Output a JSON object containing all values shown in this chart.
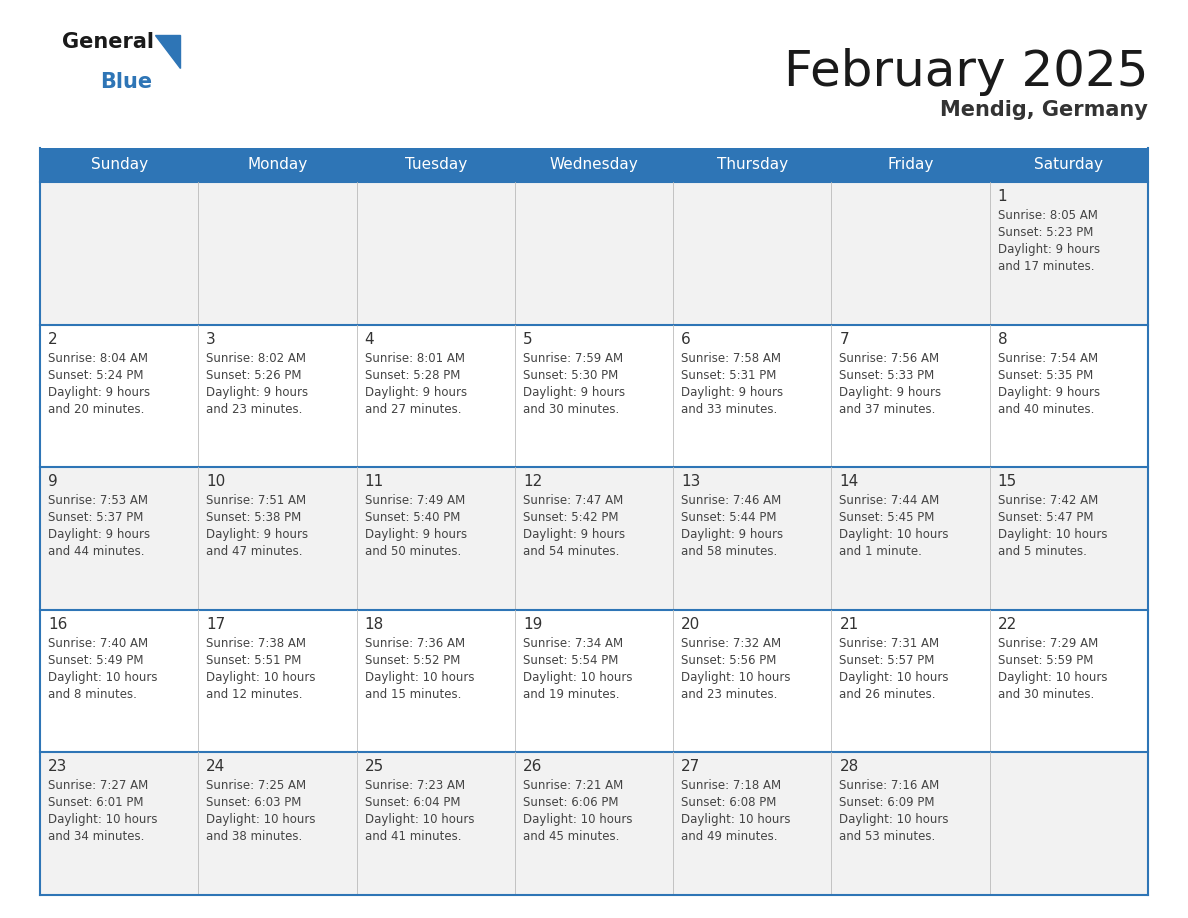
{
  "title": "February 2025",
  "subtitle": "Mendig, Germany",
  "header_bg": "#2E75B6",
  "header_text_color": "#FFFFFF",
  "days_of_week": [
    "Sunday",
    "Monday",
    "Tuesday",
    "Wednesday",
    "Thursday",
    "Friday",
    "Saturday"
  ],
  "cell_bg_odd": "#F2F2F2",
  "cell_bg_even": "#FFFFFF",
  "border_color": "#2E75B6",
  "day_number_color": "#333333",
  "info_text_color": "#444444",
  "calendar": [
    [
      null,
      null,
      null,
      null,
      null,
      null,
      {
        "day": 1,
        "sunrise": "8:05 AM",
        "sunset": "5:23 PM",
        "daylight": "9 hours and 17 minutes."
      }
    ],
    [
      {
        "day": 2,
        "sunrise": "8:04 AM",
        "sunset": "5:24 PM",
        "daylight": "9 hours and 20 minutes."
      },
      {
        "day": 3,
        "sunrise": "8:02 AM",
        "sunset": "5:26 PM",
        "daylight": "9 hours and 23 minutes."
      },
      {
        "day": 4,
        "sunrise": "8:01 AM",
        "sunset": "5:28 PM",
        "daylight": "9 hours and 27 minutes."
      },
      {
        "day": 5,
        "sunrise": "7:59 AM",
        "sunset": "5:30 PM",
        "daylight": "9 hours and 30 minutes."
      },
      {
        "day": 6,
        "sunrise": "7:58 AM",
        "sunset": "5:31 PM",
        "daylight": "9 hours and 33 minutes."
      },
      {
        "day": 7,
        "sunrise": "7:56 AM",
        "sunset": "5:33 PM",
        "daylight": "9 hours and 37 minutes."
      },
      {
        "day": 8,
        "sunrise": "7:54 AM",
        "sunset": "5:35 PM",
        "daylight": "9 hours and 40 minutes."
      }
    ],
    [
      {
        "day": 9,
        "sunrise": "7:53 AM",
        "sunset": "5:37 PM",
        "daylight": "9 hours and 44 minutes."
      },
      {
        "day": 10,
        "sunrise": "7:51 AM",
        "sunset": "5:38 PM",
        "daylight": "9 hours and 47 minutes."
      },
      {
        "day": 11,
        "sunrise": "7:49 AM",
        "sunset": "5:40 PM",
        "daylight": "9 hours and 50 minutes."
      },
      {
        "day": 12,
        "sunrise": "7:47 AM",
        "sunset": "5:42 PM",
        "daylight": "9 hours and 54 minutes."
      },
      {
        "day": 13,
        "sunrise": "7:46 AM",
        "sunset": "5:44 PM",
        "daylight": "9 hours and 58 minutes."
      },
      {
        "day": 14,
        "sunrise": "7:44 AM",
        "sunset": "5:45 PM",
        "daylight": "10 hours and 1 minute."
      },
      {
        "day": 15,
        "sunrise": "7:42 AM",
        "sunset": "5:47 PM",
        "daylight": "10 hours and 5 minutes."
      }
    ],
    [
      {
        "day": 16,
        "sunrise": "7:40 AM",
        "sunset": "5:49 PM",
        "daylight": "10 hours and 8 minutes."
      },
      {
        "day": 17,
        "sunrise": "7:38 AM",
        "sunset": "5:51 PM",
        "daylight": "10 hours and 12 minutes."
      },
      {
        "day": 18,
        "sunrise": "7:36 AM",
        "sunset": "5:52 PM",
        "daylight": "10 hours and 15 minutes."
      },
      {
        "day": 19,
        "sunrise": "7:34 AM",
        "sunset": "5:54 PM",
        "daylight": "10 hours and 19 minutes."
      },
      {
        "day": 20,
        "sunrise": "7:32 AM",
        "sunset": "5:56 PM",
        "daylight": "10 hours and 23 minutes."
      },
      {
        "day": 21,
        "sunrise": "7:31 AM",
        "sunset": "5:57 PM",
        "daylight": "10 hours and 26 minutes."
      },
      {
        "day": 22,
        "sunrise": "7:29 AM",
        "sunset": "5:59 PM",
        "daylight": "10 hours and 30 minutes."
      }
    ],
    [
      {
        "day": 23,
        "sunrise": "7:27 AM",
        "sunset": "6:01 PM",
        "daylight": "10 hours and 34 minutes."
      },
      {
        "day": 24,
        "sunrise": "7:25 AM",
        "sunset": "6:03 PM",
        "daylight": "10 hours and 38 minutes."
      },
      {
        "day": 25,
        "sunrise": "7:23 AM",
        "sunset": "6:04 PM",
        "daylight": "10 hours and 41 minutes."
      },
      {
        "day": 26,
        "sunrise": "7:21 AM",
        "sunset": "6:06 PM",
        "daylight": "10 hours and 45 minutes."
      },
      {
        "day": 27,
        "sunrise": "7:18 AM",
        "sunset": "6:08 PM",
        "daylight": "10 hours and 49 minutes."
      },
      {
        "day": 28,
        "sunrise": "7:16 AM",
        "sunset": "6:09 PM",
        "daylight": "10 hours and 53 minutes."
      },
      null
    ]
  ]
}
